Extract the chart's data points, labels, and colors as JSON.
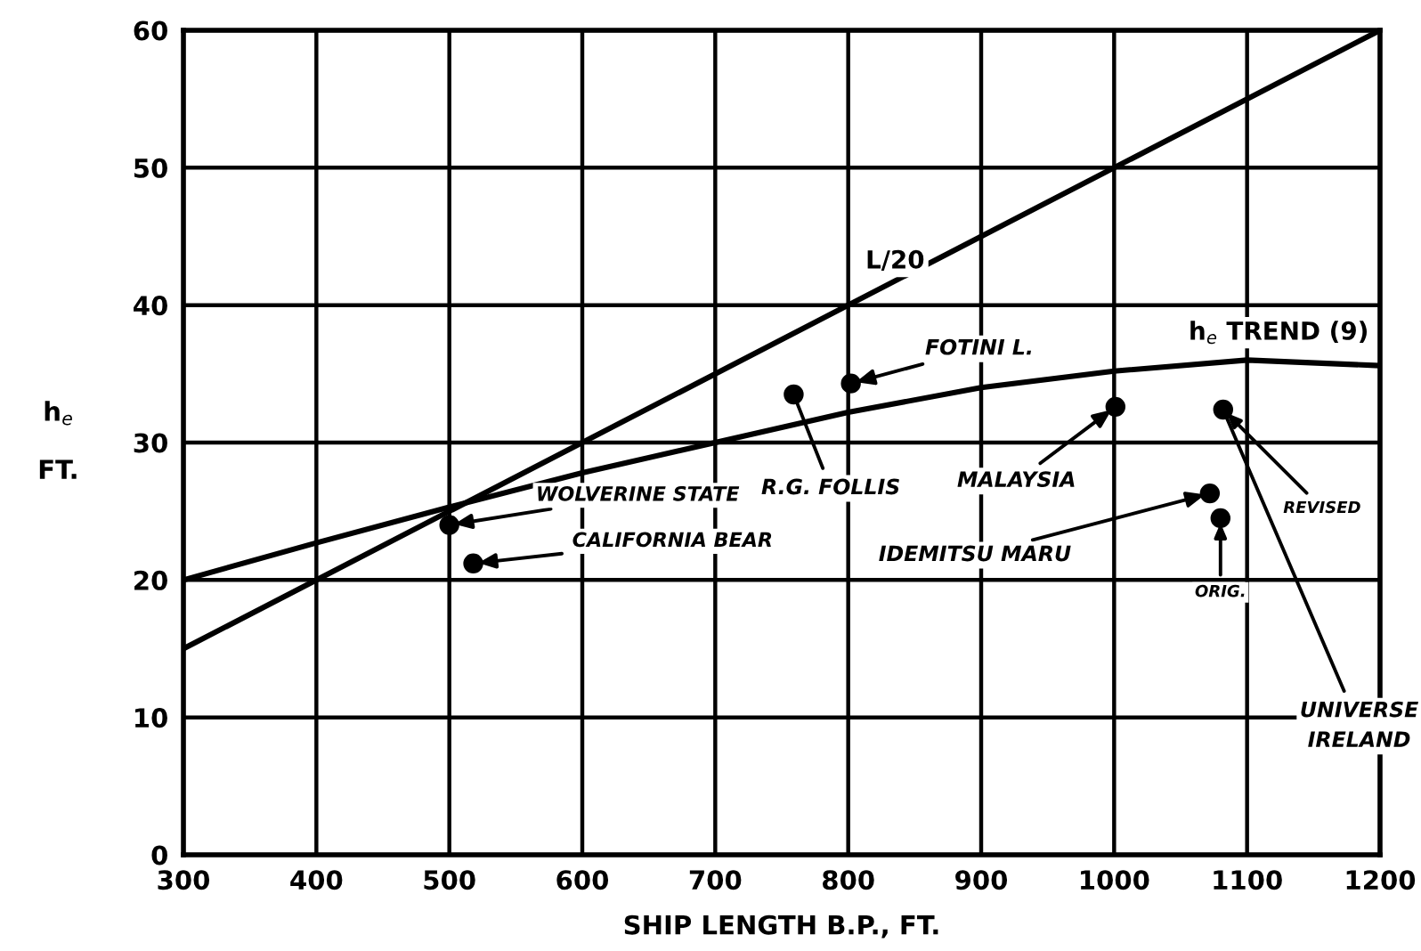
{
  "chart_data": {
    "type": "scatter",
    "xlabel": "SHIP LENGTH B.P., FT.",
    "ylabel": "h$_{e}$\n\nFT.",
    "xlim": [
      300,
      1200
    ],
    "ylim": [
      0,
      60
    ],
    "xticks": [
      300,
      400,
      500,
      600,
      700,
      800,
      900,
      1000,
      1100,
      1200
    ],
    "yticks": [
      0,
      10,
      20,
      30,
      40,
      50,
      60
    ],
    "grid": true,
    "series": [
      {
        "name": "L/20",
        "type": "line",
        "color": "#000000",
        "x": [
          300,
          1200
        ],
        "values": [
          15,
          60
        ]
      },
      {
        "name": "h$_{e}$ TREND (9)",
        "type": "line",
        "color": "#000000",
        "x": [
          300,
          400,
          500,
          600,
          700,
          800,
          900,
          1000,
          1100,
          1200
        ],
        "values": [
          20,
          22.7,
          25.3,
          27.8,
          30,
          32.2,
          34,
          35.2,
          36,
          35.6
        ]
      },
      {
        "type": "scatter",
        "marker": "circle",
        "color": "#000000",
        "x": [
          500,
          518,
          759,
          802,
          1001,
          1072,
          1082,
          1080
        ],
        "values": [
          24,
          21.2,
          33.5,
          34.3,
          32.6,
          26.3,
          32.4,
          24.5
        ]
      }
    ],
    "annotations": [
      {
        "text": "WOLVERINE STATE",
        "x": 500,
        "y": 24
      },
      {
        "text": "CALIFORNIA BEAR",
        "x": 518,
        "y": 21.2
      },
      {
        "text": "R.G. FOLLIS",
        "x": 759,
        "y": 33.5
      },
      {
        "text": "FOTINI L.",
        "x": 802,
        "y": 34.3
      },
      {
        "text": "MALAYSIA",
        "x": 1001,
        "y": 32.6
      },
      {
        "text": "IDEMITSU MARU",
        "x": 1072,
        "y": 26.3
      },
      {
        "text": "REVISED",
        "x": 1082,
        "y": 32.4
      },
      {
        "text": "ORIG.",
        "x": 1080,
        "y": 24.5
      },
      {
        "text": "UNIVERSE\nIRELAND",
        "x": 1082,
        "y": 32.4
      }
    ]
  }
}
